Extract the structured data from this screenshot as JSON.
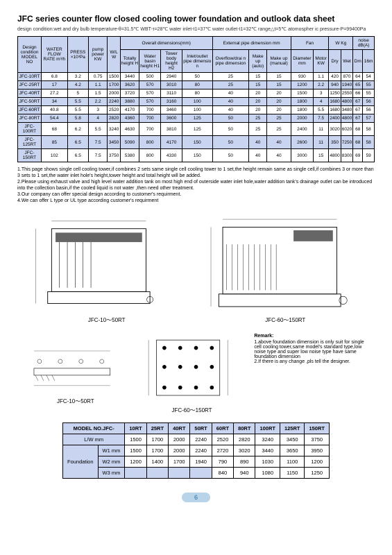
{
  "title": "JFC series counter flow closed cooling tower foundation and outlook data sheet",
  "subtitle": "design condition:wet and dry bulb temperature-θ=31.5℃ WBT-τ=28℃ water inlet-t1=37℃ water outlet-t1=32℃ range△t=5℃ atomospher ic pressure-P=99400Pa",
  "headers": {
    "design": "Design condition",
    "model": "MODEL NO",
    "wfr": "WATER FLOW RATE m³/h",
    "press": "PRESS ×10³Pa",
    "pump": "pump power KW",
    "wl": "W/L W",
    "overall": "Overall dimensions(mm)",
    "total_h": "Totally height H",
    "basin_h": "Water basin height H1",
    "tower_h": "Tower body height H2",
    "inlet": "Inlet/outlet pipe dimensio n",
    "ext": "External pipe dimension mm",
    "overflow": "Overflow/drai n pipe dimension",
    "makeup_a": "Make up (auto)",
    "makeup_m": "Make up (manual)",
    "fan": "Fan",
    "dia": "Diameter mm",
    "motor": "Motor KW",
    "wkg": "W Kg",
    "dry": "Dry",
    "wet": "Wet",
    "noise": "noise dB(A)",
    "dm": "Dm",
    "dm16": "16m"
  },
  "rows": [
    {
      "model": "JFC-10RT",
      "wfr": "6.8",
      "press": "3.2",
      "pump": "0.75",
      "wl": "1500",
      "th": "3440",
      "bh": "500",
      "twh": "2940",
      "inlet": "50",
      "ovf": "25",
      "ma": "15",
      "mm": "15",
      "dia": "930",
      "mk": "1.1",
      "dry": "420",
      "wet": "870",
      "dm": "64",
      "d16": "54"
    },
    {
      "model": "JFC-25RT",
      "wfr": "17",
      "press": "4.2",
      "pump": "1.1",
      "wl": "1700",
      "th": "3620",
      "bh": "570",
      "twh": "3010",
      "inlet": "80",
      "ovf": "25",
      "ma": "15",
      "mm": "15",
      "dia": "1200",
      "mk": "2.2",
      "dry": "940",
      "wet": "1940",
      "dm": "65",
      "d16": "55"
    },
    {
      "model": "JFC-40RT",
      "wfr": "27.2",
      "press": "5",
      "pump": "1.5",
      "wl": "2000",
      "th": "3720",
      "bh": "570",
      "twh": "3110",
      "inlet": "80",
      "ovf": "40",
      "ma": "20",
      "mm": "20",
      "dia": "1500",
      "mk": "3",
      "dry": "1250",
      "wet": "2550",
      "dm": "66",
      "d16": "55"
    },
    {
      "model": "JFC-50RT",
      "wfr": "34",
      "press": "5.5",
      "pump": "2.2",
      "wl": "2240",
      "th": "3880",
      "bh": "570",
      "twh": "3160",
      "inlet": "100",
      "ovf": "40",
      "ma": "20",
      "mm": "20",
      "dia": "1800",
      "mk": "4",
      "dry": "1680",
      "wet": "4800",
      "dm": "67",
      "d16": "56"
    },
    {
      "model": "JFC-60RT",
      "wfr": "40.8",
      "press": "5.5",
      "pump": "3",
      "wl": "2520",
      "th": "4170",
      "bh": "700",
      "twh": "3460",
      "inlet": "100",
      "ovf": "40",
      "ma": "20",
      "mm": "20",
      "dia": "1800",
      "mk": "5.5",
      "dry": "1680",
      "wet": "3480",
      "dm": "67",
      "d16": "56"
    },
    {
      "model": "JFC-80RT",
      "wfr": "54.4",
      "press": "5.8",
      "pump": "4",
      "wl": "2820",
      "th": "4360",
      "bh": "700",
      "twh": "3600",
      "inlet": "125",
      "ovf": "50",
      "ma": "25",
      "mm": "25",
      "dia": "2000",
      "mk": "7.5",
      "dry": "2400",
      "wet": "4800",
      "dm": "67",
      "d16": "57"
    },
    {
      "model": "JFC-100RT",
      "wfr": "68",
      "press": "6.2",
      "pump": "5.5",
      "wl": "3240",
      "th": "4630",
      "bh": "700",
      "twh": "3810",
      "inlet": "125",
      "ovf": "50",
      "ma": "25",
      "mm": "25",
      "dia": "2400",
      "mk": "11",
      "dry": "3020",
      "wet": "6020",
      "dm": "68",
      "d16": "58"
    },
    {
      "model": "JFC-125RT",
      "wfr": "85",
      "press": "6.5",
      "pump": "7.5",
      "wl": "3450",
      "th": "5090",
      "bh": "800",
      "twh": "4170",
      "inlet": "150",
      "ovf": "50",
      "ma": "40",
      "mm": "40",
      "dia": "2600",
      "mk": "11",
      "dry": "350",
      "wet": "7250",
      "dm": "68",
      "d16": "58"
    },
    {
      "model": "JFC-150RT",
      "wfr": "102",
      "press": "6.5",
      "pump": "7.5",
      "wl": "3750",
      "th": "5380",
      "bh": "800",
      "twh": "4330",
      "inlet": "150",
      "ovf": "50",
      "ma": "40",
      "mm": "40",
      "dia": "3000",
      "mk": "15",
      "dry": "4800",
      "wet": "8300",
      "dm": "69",
      "d16": "59"
    }
  ],
  "notes": [
    "1.This page shows single cell cooling tower,if combines 2 sets same single cell cooling tower to 1 set,the height remain same as single cell,if combines 3 or more than 3 sets to 1 set,the water inlet hole's height,tower height and total height will be added.",
    "2.Please using exhaust valve and high level water addition tank on most high end of outerside water inlet hole,water addition tank's drainage outlet can be introduced into the collection basin,if the cooled liquid is not water ,then need other treatment.",
    "3.Our company can offer special design according to customer's requirment.",
    "4.We can offer L type or UL type according customer's requirment"
  ],
  "diagram_labels": {
    "d1": "JFC-10～50RT",
    "d2": "JFC-60～150RT"
  },
  "remark": {
    "title": "Remark:",
    "lines": [
      "1.above foundation dimension is only suit for single cell cooling tower,same model's standard type,low noise type and super low noise type have same foundation dimension",
      "2.If there is any change ,pls tell the designer."
    ]
  },
  "ft": {
    "model_label": "MODEL NO.JFC-",
    "lw_label": "L/W mm",
    "foundation_label": "Foundation",
    "w1": "W1 mm",
    "w2": "W2 mm",
    "w3": "W3 mm",
    "cols": [
      "10RT",
      "25RT",
      "40RT",
      "50RT",
      "60RT",
      "80RT",
      "100RT",
      "125RT",
      "150RT"
    ],
    "lw": [
      "1500",
      "1700",
      "2000",
      "2240",
      "2520",
      "2820",
      "3240",
      "3450",
      "3750"
    ],
    "w1v": [
      "1500",
      "1700",
      "2000",
      "2240",
      "2720",
      "3020",
      "3440",
      "3650",
      "3950"
    ],
    "w2v": [
      "1200",
      "1400",
      "1700",
      "1940",
      "790",
      "890",
      "1030",
      "1100",
      "1200"
    ],
    "w3v": [
      "",
      "",
      "",
      "",
      "840",
      "940",
      "1080",
      "1150",
      "1250"
    ]
  },
  "page": "6"
}
